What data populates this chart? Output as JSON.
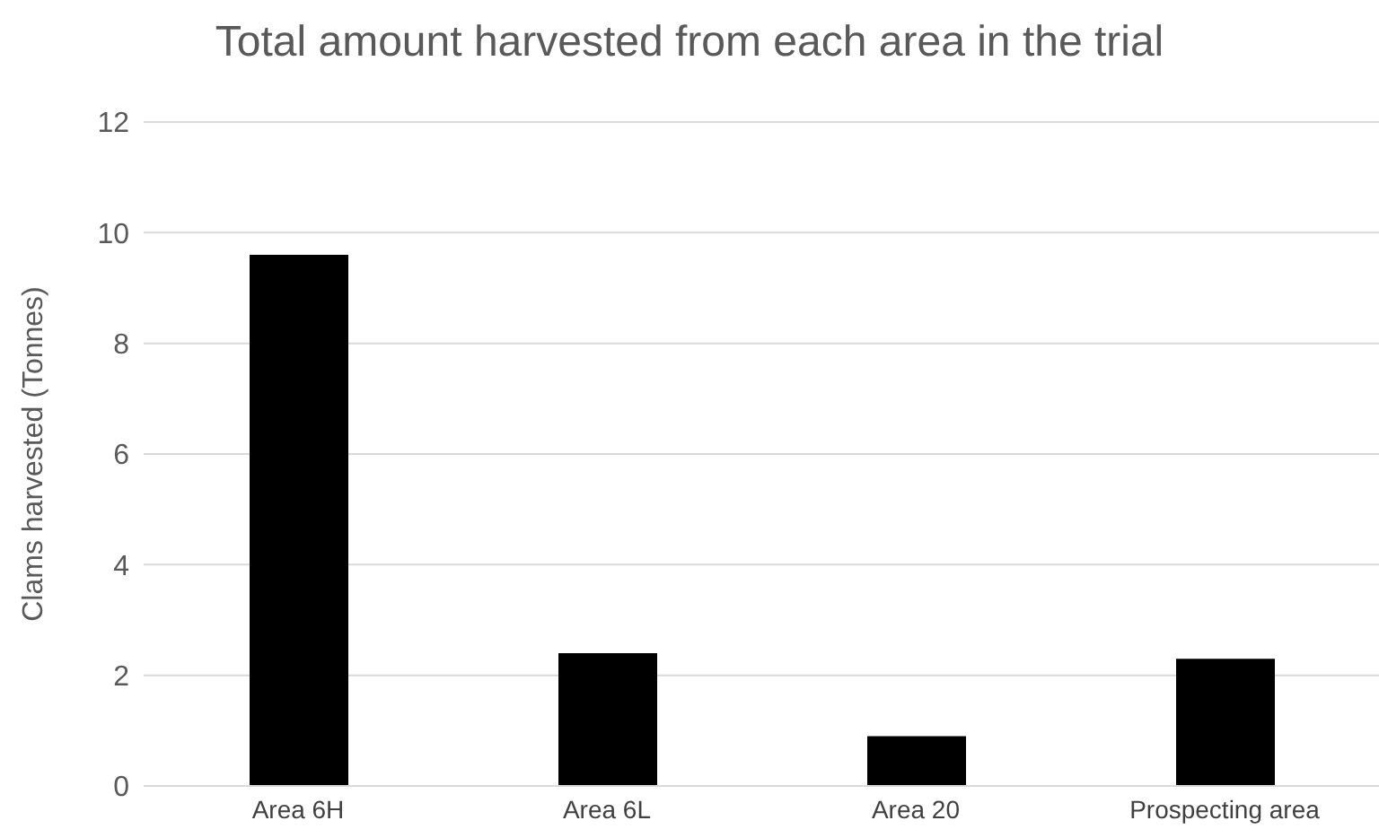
{
  "chart_data": {
    "type": "bar",
    "title": "Total amount harvested from each area in the trial",
    "ylabel": "Clams harvested  (Tonnes)",
    "categories": [
      "Area 6H",
      "Area 6L",
      "Area 20",
      "Prospecting area"
    ],
    "values": [
      9.6,
      2.4,
      0.9,
      2.3
    ],
    "color": "#000000",
    "ylim": [
      0,
      12
    ],
    "yticks": [
      0,
      2,
      4,
      6,
      8,
      10,
      12
    ],
    "grid": "y"
  }
}
